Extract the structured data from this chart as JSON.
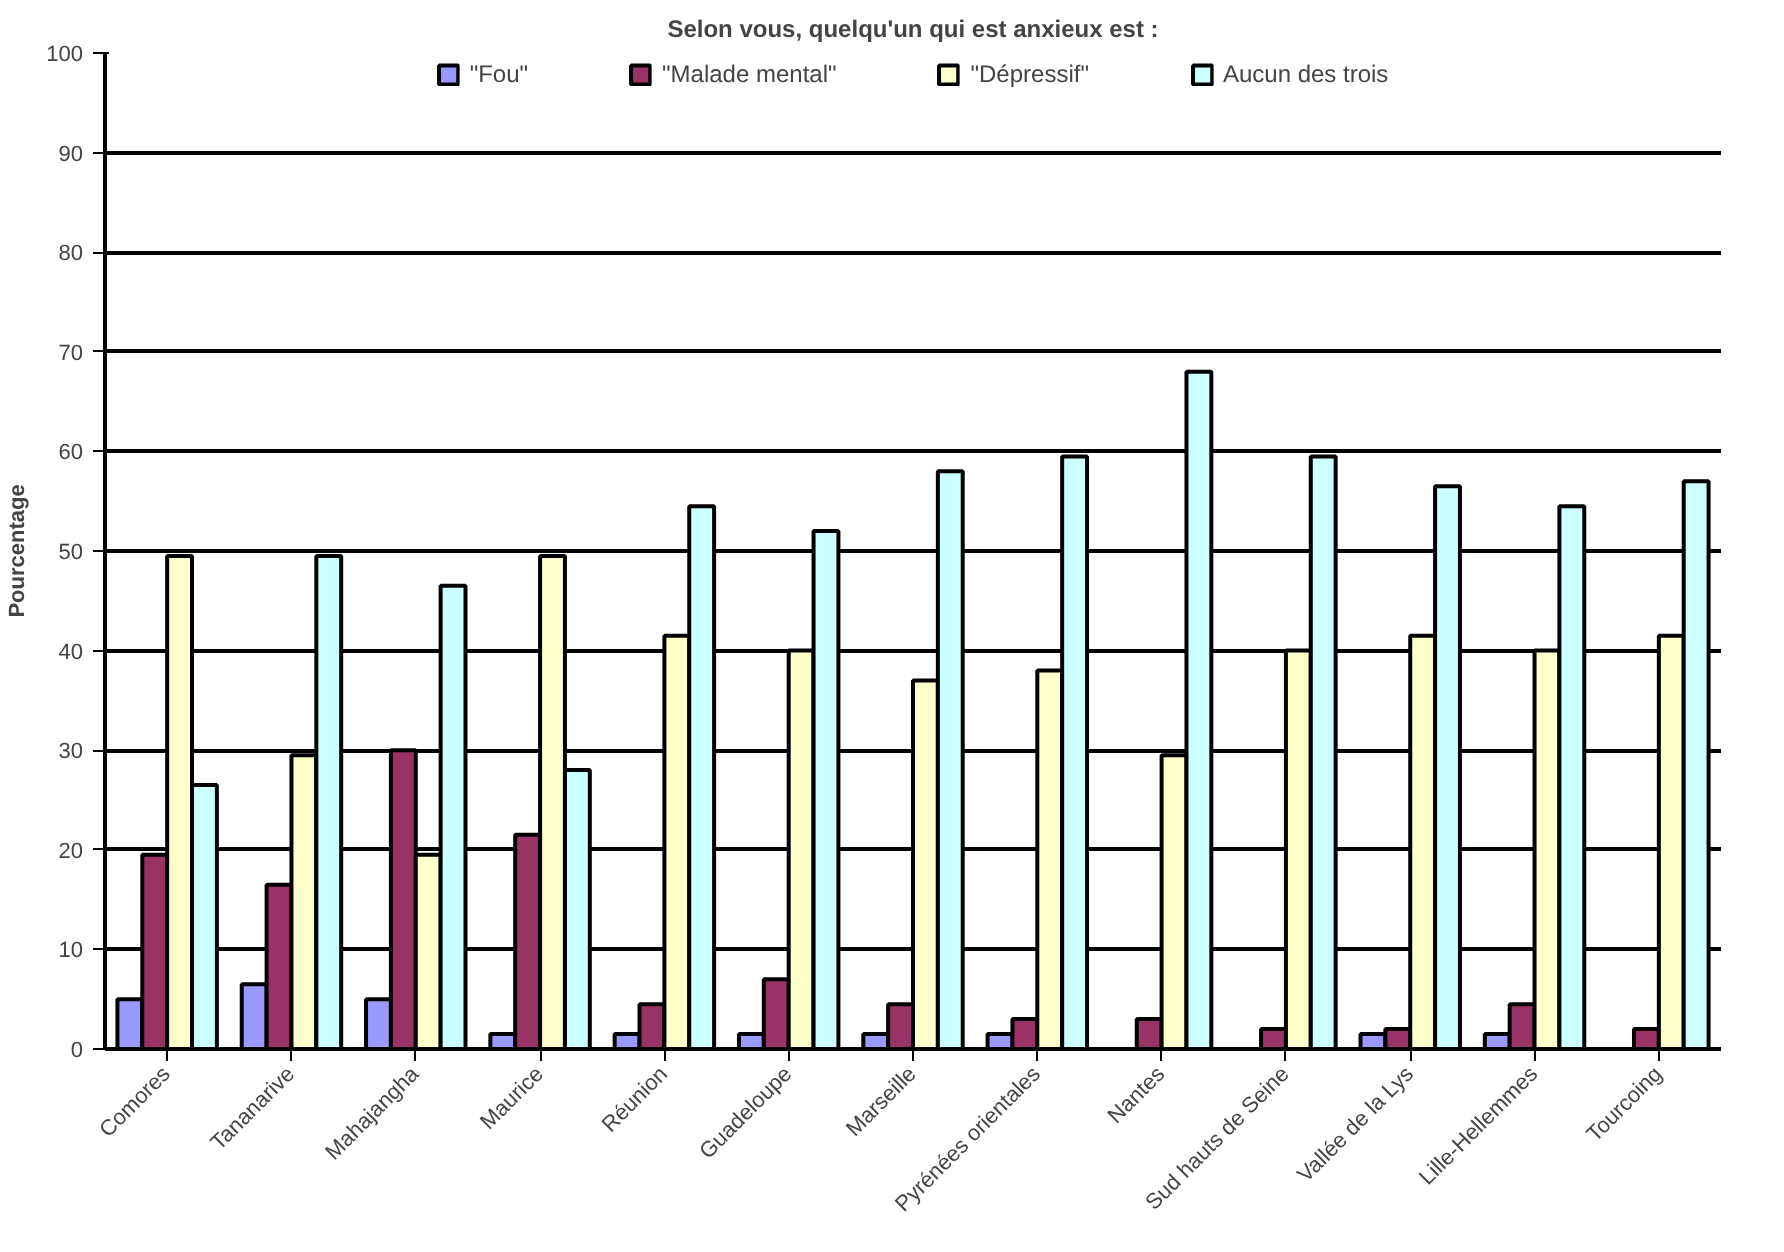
{
  "chart_data": {
    "type": "bar",
    "title": "Selon vous, quelqu'un qui est anxieux est :",
    "ylabel": "Pourcentage",
    "categories": [
      "Comores",
      "Tananarive",
      "Mahajangha",
      "Maurice",
      "Réunion",
      "Guadeloupe",
      "Marseille",
      "Pyrénées orientales",
      "Nantes",
      "Sud hauts de Seine",
      "Vallée de la Lys",
      "Lille-Hellemmes",
      "Tourcoing"
    ],
    "series": [
      {
        "name": "\"Fou\"",
        "color": "#9999ff",
        "values": [
          5,
          6.5,
          5,
          1.5,
          1.5,
          1.5,
          1.5,
          1.5,
          null,
          null,
          1.5,
          1.5,
          null
        ]
      },
      {
        "name": "\"Malade mental\"",
        "color": "#993366",
        "values": [
          19.5,
          16.5,
          30,
          21.5,
          4.5,
          7,
          4.5,
          3,
          3,
          2,
          2,
          4.5,
          2
        ]
      },
      {
        "name": "\"Dépressif\"",
        "color": "#ffffcc",
        "values": [
          49.5,
          29.5,
          19.5,
          49.5,
          41.5,
          40,
          37,
          38,
          29.5,
          40,
          41.5,
          40,
          41.5
        ]
      },
      {
        "name": "Aucun des trois",
        "color": "#ccffff",
        "values": [
          26.5,
          49.5,
          46.5,
          28,
          54.5,
          52,
          58,
          59.5,
          68,
          59.5,
          56.5,
          54.5,
          57
        ]
      }
    ],
    "ylim": [
      0,
      100
    ],
    "yticks": [
      0,
      10,
      20,
      30,
      40,
      50,
      60,
      70,
      80,
      90,
      100
    ],
    "grid": "y",
    "legend": "top"
  }
}
